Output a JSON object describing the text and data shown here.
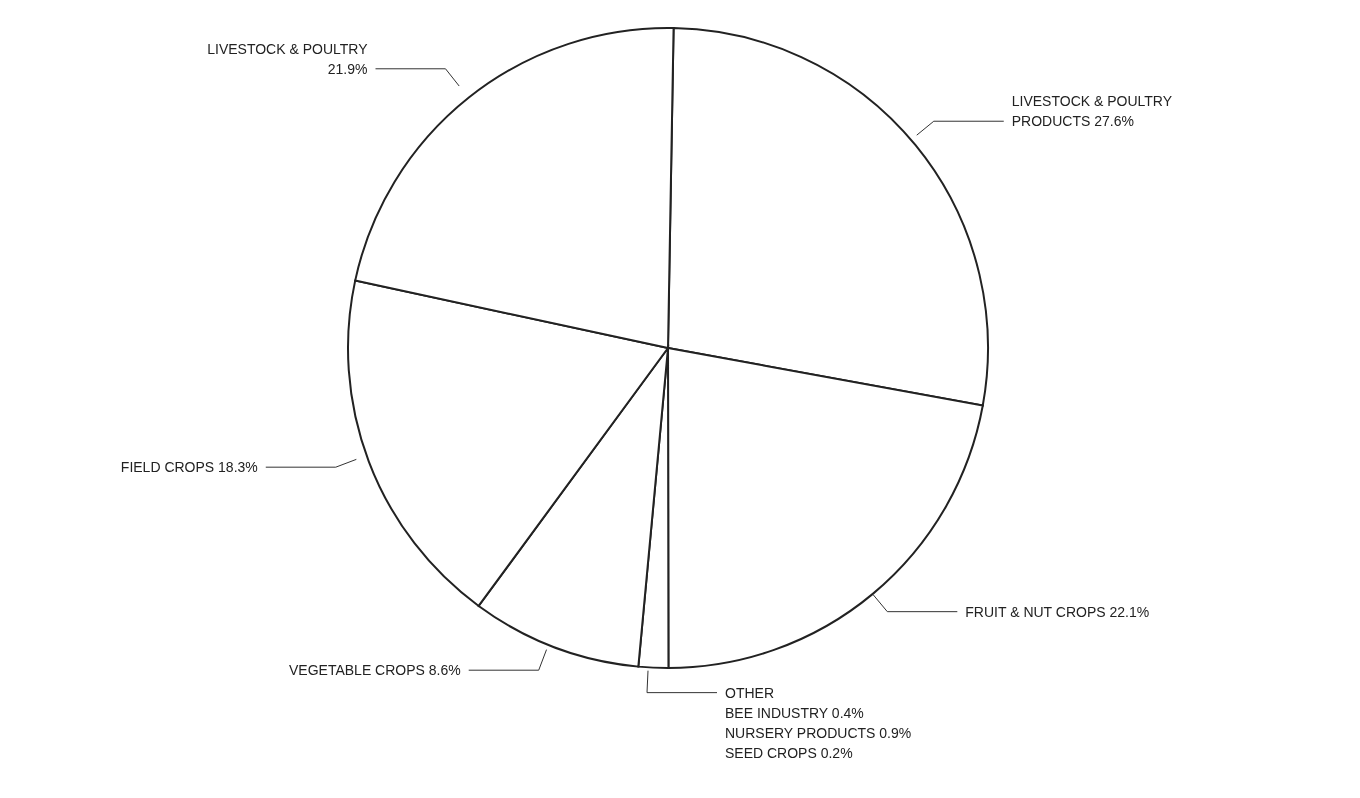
{
  "chart_data": {
    "type": "pie",
    "categories": [
      "LIVESTOCK & POULTRY PRODUCTS",
      "FRUIT & NUT CROPS",
      "OTHER",
      "VEGETABLE CROPS",
      "FIELD CROPS",
      "LIVESTOCK & POULTRY"
    ],
    "values": [
      27.6,
      22.1,
      1.5,
      8.6,
      18.3,
      21.9
    ],
    "value_labels": [
      "27.6%",
      "22.1%",
      null,
      "8.6%",
      "18.3%",
      "21.9%"
    ],
    "colors": [
      "#ffffff",
      "#ffffff",
      "#ffffff",
      "#ffffff",
      "#ffffff",
      "#ffffff"
    ],
    "annotations": [
      "BEE INDUSTRY 0.4%",
      "NURSERY PRODUCTS 0.9%",
      "SEED CROPS 0.2%"
    ]
  }
}
